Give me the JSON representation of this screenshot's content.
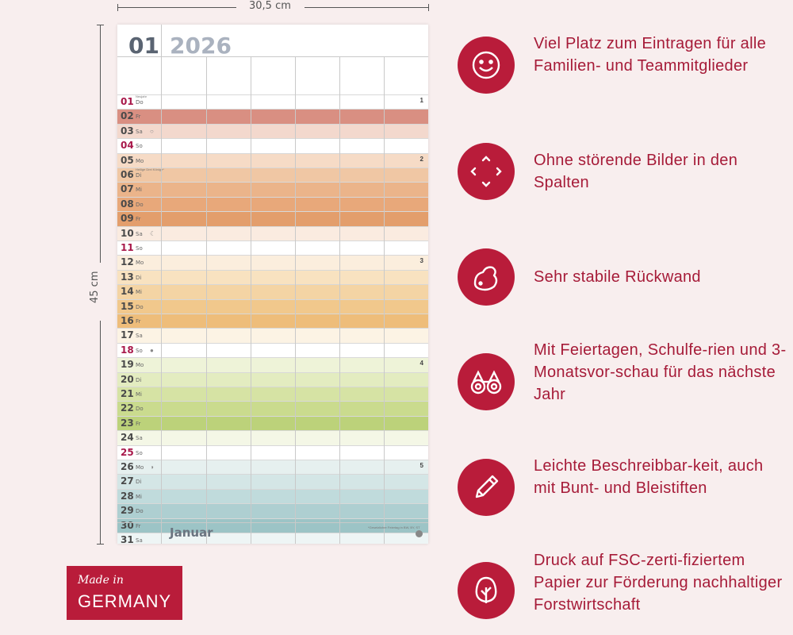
{
  "dimensions": {
    "width_label": "30,5 cm",
    "height_label": "45 cm"
  },
  "calendar": {
    "month_number": "01",
    "year": "2026",
    "month_name": "Januar",
    "footer_note": "*Gesetzlicher Feiertag in BW, BY, ST",
    "days": [
      {
        "num": "01",
        "wd": "Do",
        "red": true,
        "note": "Neujahr",
        "color": "#ffffff",
        "week": "1"
      },
      {
        "num": "02",
        "wd": "Fr",
        "red": false,
        "color": "#d98f82"
      },
      {
        "num": "03",
        "wd": "Sa",
        "red": false,
        "color": "#f3d8cd",
        "moon": "○"
      },
      {
        "num": "04",
        "wd": "So",
        "red": true,
        "color": "#ffffff"
      },
      {
        "num": "05",
        "wd": "Mo",
        "red": false,
        "color": "#f6dbc6",
        "week": "2"
      },
      {
        "num": "06",
        "wd": "Di",
        "red": false,
        "note": "Heilige Drei Könige*",
        "color": "#f0c7a4"
      },
      {
        "num": "07",
        "wd": "Mi",
        "red": false,
        "color": "#ebb48a"
      },
      {
        "num": "08",
        "wd": "Do",
        "red": false,
        "color": "#e8a87a"
      },
      {
        "num": "09",
        "wd": "Fr",
        "red": false,
        "color": "#e39e6c"
      },
      {
        "num": "10",
        "wd": "Sa",
        "red": false,
        "color": "#faebe0",
        "moon": "☾"
      },
      {
        "num": "11",
        "wd": "So",
        "red": true,
        "color": "#ffffff"
      },
      {
        "num": "12",
        "wd": "Mo",
        "red": false,
        "color": "#fbeedd",
        "week": "3"
      },
      {
        "num": "13",
        "wd": "Di",
        "red": false,
        "color": "#f8e2c0"
      },
      {
        "num": "14",
        "wd": "Mi",
        "red": false,
        "color": "#f4d4a4"
      },
      {
        "num": "15",
        "wd": "Do",
        "red": false,
        "color": "#f1c88c"
      },
      {
        "num": "16",
        "wd": "Fr",
        "red": false,
        "color": "#eebd7a"
      },
      {
        "num": "17",
        "wd": "Sa",
        "red": false,
        "color": "#fcf3e4"
      },
      {
        "num": "18",
        "wd": "So",
        "red": true,
        "color": "#ffffff",
        "moon": "●"
      },
      {
        "num": "19",
        "wd": "Mo",
        "red": false,
        "color": "#eef3d8",
        "week": "4"
      },
      {
        "num": "20",
        "wd": "Di",
        "red": false,
        "color": "#e3ecc0"
      },
      {
        "num": "21",
        "wd": "Mi",
        "red": false,
        "color": "#d6e3a4"
      },
      {
        "num": "22",
        "wd": "Do",
        "red": false,
        "color": "#cadb8e"
      },
      {
        "num": "23",
        "wd": "Fr",
        "red": false,
        "color": "#bcd27a"
      },
      {
        "num": "24",
        "wd": "Sa",
        "red": false,
        "color": "#f4f7e6"
      },
      {
        "num": "25",
        "wd": "So",
        "red": true,
        "color": "#ffffff"
      },
      {
        "num": "26",
        "wd": "Mo",
        "red": false,
        "color": "#e6f0ef",
        "week": "5",
        "moon": "◑"
      },
      {
        "num": "27",
        "wd": "Di",
        "red": false,
        "color": "#d4e6e6"
      },
      {
        "num": "28",
        "wd": "Mi",
        "red": false,
        "color": "#c0dbdc"
      },
      {
        "num": "29",
        "wd": "Do",
        "red": false,
        "color": "#aecfd1"
      },
      {
        "num": "30",
        "wd": "Fr",
        "red": false,
        "color": "#9cc4c6"
      },
      {
        "num": "31",
        "wd": "Sa",
        "red": false,
        "color": "#eef5f5"
      }
    ]
  },
  "features": [
    {
      "icon": "smiley-icon",
      "text": "Viel Platz zum Eintragen für alle Familien- und Teammitglieder"
    },
    {
      "icon": "expand-arrows-icon",
      "text": "Ohne störende Bilder in den Spalten"
    },
    {
      "icon": "muscle-arm-icon",
      "text": "Sehr stabile Rückwand"
    },
    {
      "icon": "binoculars-icon",
      "text": "Mit Feiertagen, Schulfe-rien und 3-Monatsvor-schau für das nächste Jahr"
    },
    {
      "icon": "pencil-icon",
      "text": "Leichte Beschreibbar-keit, auch mit Bunt- und Bleistiften"
    },
    {
      "icon": "tree-icon",
      "text": "Druck auf FSC-zerti-fiziertem Papier zur Förderung nachhaltiger Forstwirtschaft"
    }
  ],
  "badge": {
    "made_in": "Made in",
    "country": "GERMANY"
  },
  "colors": {
    "accent": "#b91c3a",
    "text_accent": "#a61b38",
    "background": "#f8eeee"
  }
}
